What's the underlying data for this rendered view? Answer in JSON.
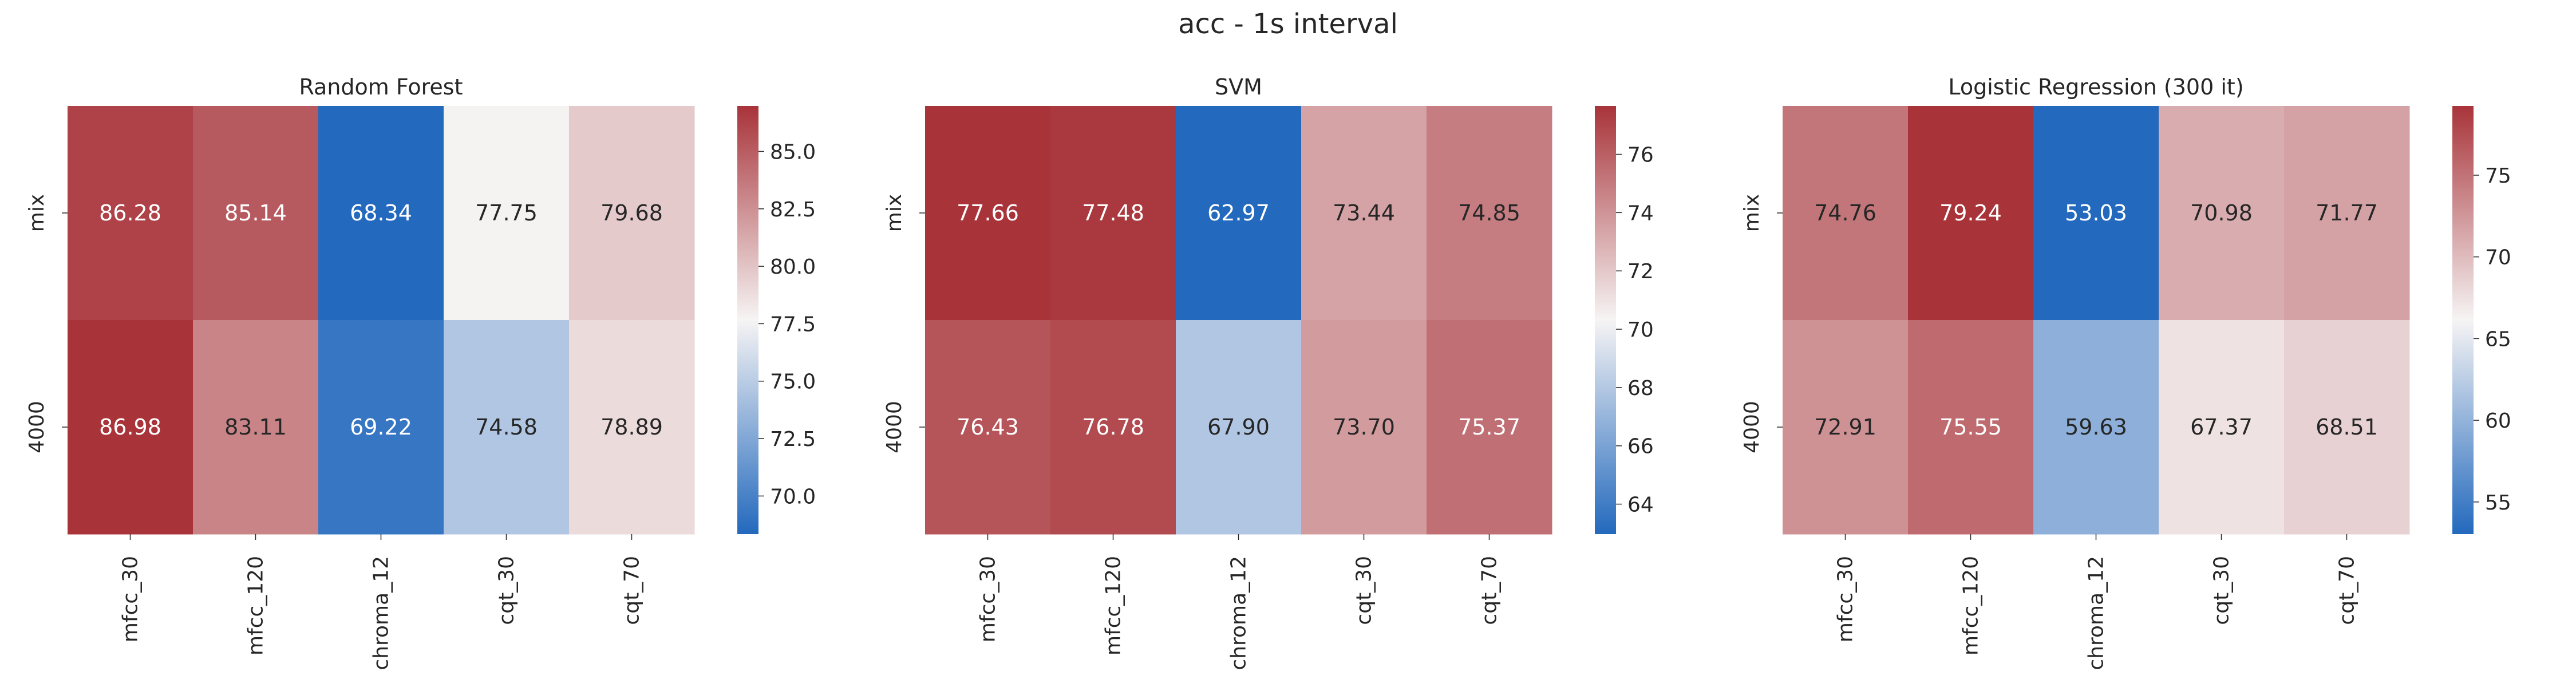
{
  "figure": {
    "title": "acc - 1s interval"
  },
  "chart_data": [
    {
      "type": "heatmap",
      "title": "Random Forest",
      "x_categories": [
        "mfcc_30",
        "mfcc_120",
        "chroma_12",
        "cqt_30",
        "cqt_70"
      ],
      "y_categories": [
        "mix",
        "4000"
      ],
      "values": [
        [
          86.28,
          85.14,
          68.34,
          77.75,
          79.68
        ],
        [
          86.98,
          83.11,
          69.22,
          74.58,
          78.89
        ]
      ],
      "value_labels": [
        [
          "86.28",
          "85.14",
          "68.34",
          "77.75",
          "79.68"
        ],
        [
          "86.98",
          "83.11",
          "69.22",
          "74.58",
          "78.89"
        ]
      ],
      "colorbar": {
        "ticks": [
          70.0,
          72.5,
          75.0,
          77.5,
          80.0,
          82.5,
          85.0
        ],
        "tick_labels": [
          "70.0",
          "72.5",
          "75.0",
          "77.5",
          "80.0",
          "82.5",
          "85.0"
        ],
        "range": [
          68.34,
          86.98
        ]
      },
      "colormap": "vlag",
      "xlabel": "",
      "ylabel": ""
    },
    {
      "type": "heatmap",
      "title": "SVM",
      "x_categories": [
        "mfcc_30",
        "mfcc_120",
        "chroma_12",
        "cqt_30",
        "cqt_70"
      ],
      "y_categories": [
        "mix",
        "4000"
      ],
      "values": [
        [
          77.66,
          77.48,
          62.97,
          73.44,
          74.85
        ],
        [
          76.43,
          76.78,
          67.9,
          73.7,
          75.37
        ]
      ],
      "value_labels": [
        [
          "77.66",
          "77.48",
          "62.97",
          "73.44",
          "74.85"
        ],
        [
          "76.43",
          "76.78",
          "67.90",
          "73.70",
          "75.37"
        ]
      ],
      "colorbar": {
        "ticks": [
          64,
          66,
          68,
          70,
          72,
          74,
          76
        ],
        "tick_labels": [
          "64",
          "66",
          "68",
          "70",
          "72",
          "74",
          "76"
        ],
        "range": [
          62.97,
          77.66
        ]
      },
      "colormap": "vlag",
      "xlabel": "",
      "ylabel": ""
    },
    {
      "type": "heatmap",
      "title": "Logistic Regression (300 it)",
      "x_categories": [
        "mfcc_30",
        "mfcc_120",
        "chroma_12",
        "cqt_30",
        "cqt_70"
      ],
      "y_categories": [
        "mix",
        "4000"
      ],
      "values": [
        [
          74.76,
          79.24,
          53.03,
          70.98,
          71.77
        ],
        [
          72.91,
          75.55,
          59.63,
          67.37,
          68.51
        ]
      ],
      "value_labels": [
        [
          "74.76",
          "79.24",
          "53.03",
          "70.98",
          "71.77"
        ],
        [
          "72.91",
          "75.55",
          "59.63",
          "67.37",
          "68.51"
        ]
      ],
      "colorbar": {
        "ticks": [
          55,
          60,
          65,
          70,
          75
        ],
        "tick_labels": [
          "55",
          "60",
          "65",
          "70",
          "75"
        ],
        "range": [
          53.03,
          79.24
        ]
      },
      "colormap": "vlag",
      "xlabel": "",
      "ylabel": ""
    }
  ],
  "colors": {
    "low": "#2369bd",
    "mid": "#f6f4f4",
    "high": "#a8343a"
  }
}
